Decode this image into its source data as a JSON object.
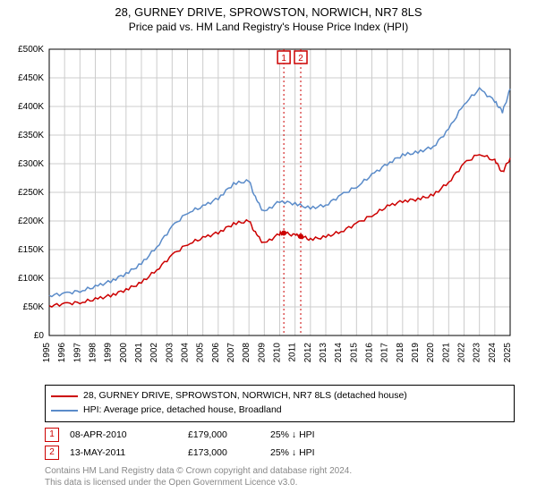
{
  "title": "28, GURNEY DRIVE, SPROWSTON, NORWICH, NR7 8LS",
  "subtitle": "Price paid vs. HM Land Registry's House Price Index (HPI)",
  "chart": {
    "type": "line",
    "background_color": "#ffffff",
    "grid_color": "#cccccc",
    "axis_color": "#000000",
    "xlim": [
      1995,
      2025
    ],
    "xtick_step": 1,
    "ylim": [
      0,
      500000
    ],
    "ytick_step": 50000,
    "ytick_prefix": "£",
    "ytick_suffix_thousands": "K",
    "title_fontsize": 13,
    "subtitle_fontsize": 12,
    "axis_label_fontsize": 10,
    "tick_fontsize": 10,
    "line_width": 1.5,
    "series": [
      {
        "name": "property",
        "label": "28, GURNEY DRIVE, SPROWSTON, NORWICH, NR7 8LS (detached house)",
        "color": "#cc0000",
        "x": [
          1995,
          1996,
          1997,
          1998,
          1999,
          2000,
          2001,
          2002,
          2003,
          2004,
          2005,
          2006,
          2007,
          2008,
          2008.5,
          2009,
          2010,
          2010.27,
          2011,
          2011.37,
          2012,
          2013,
          2014,
          2015,
          2016,
          2017,
          2018,
          2019,
          2020,
          2021,
          2022,
          2023,
          2024,
          2024.5,
          2025
        ],
        "y": [
          52000,
          55000,
          58000,
          63000,
          70000,
          80000,
          92000,
          115000,
          140000,
          160000,
          170000,
          180000,
          195000,
          200000,
          175000,
          160000,
          178000,
          179000,
          175000,
          173000,
          168000,
          172000,
          182000,
          195000,
          210000,
          225000,
          235000,
          238000,
          245000,
          268000,
          300000,
          318000,
          305000,
          285000,
          310000
        ]
      },
      {
        "name": "hpi",
        "label": "HPI: Average price, detached house, Broadland",
        "color": "#5a8bc9",
        "x": [
          1995,
          1996,
          1997,
          1998,
          1999,
          2000,
          2001,
          2002,
          2003,
          2004,
          2005,
          2006,
          2007,
          2008,
          2008.5,
          2009,
          2010,
          2011,
          2012,
          2013,
          2014,
          2015,
          2016,
          2017,
          2018,
          2019,
          2020,
          2021,
          2022,
          2023,
          2024,
          2024.5,
          2025
        ],
        "y": [
          70000,
          73000,
          78000,
          85000,
          95000,
          108000,
          125000,
          155000,
          190000,
          215000,
          225000,
          240000,
          265000,
          270000,
          235000,
          215000,
          235000,
          230000,
          222000,
          228000,
          245000,
          260000,
          280000,
          300000,
          315000,
          320000,
          330000,
          360000,
          405000,
          430000,
          410000,
          390000,
          430000
        ]
      }
    ],
    "transaction_markers": [
      {
        "num": "1",
        "x": 2010.27,
        "y": 179000,
        "color": "#cc0000",
        "date": "08-APR-2010",
        "price_label": "£179,000",
        "note": "25% ↓ HPI"
      },
      {
        "num": "2",
        "x": 2011.37,
        "y": 173000,
        "color": "#cc0000",
        "date": "13-MAY-2011",
        "price_label": "£173,000",
        "note": "25% ↓ HPI"
      }
    ],
    "marker_line_style": "dotted"
  },
  "legend": {
    "border_color": "#000000",
    "fontsize": 10.5
  },
  "credit_line1": "Contains HM Land Registry data © Crown copyright and database right 2024.",
  "credit_line2": "This data is licensed under the Open Government Licence v3.0.",
  "credit_color": "#888888"
}
